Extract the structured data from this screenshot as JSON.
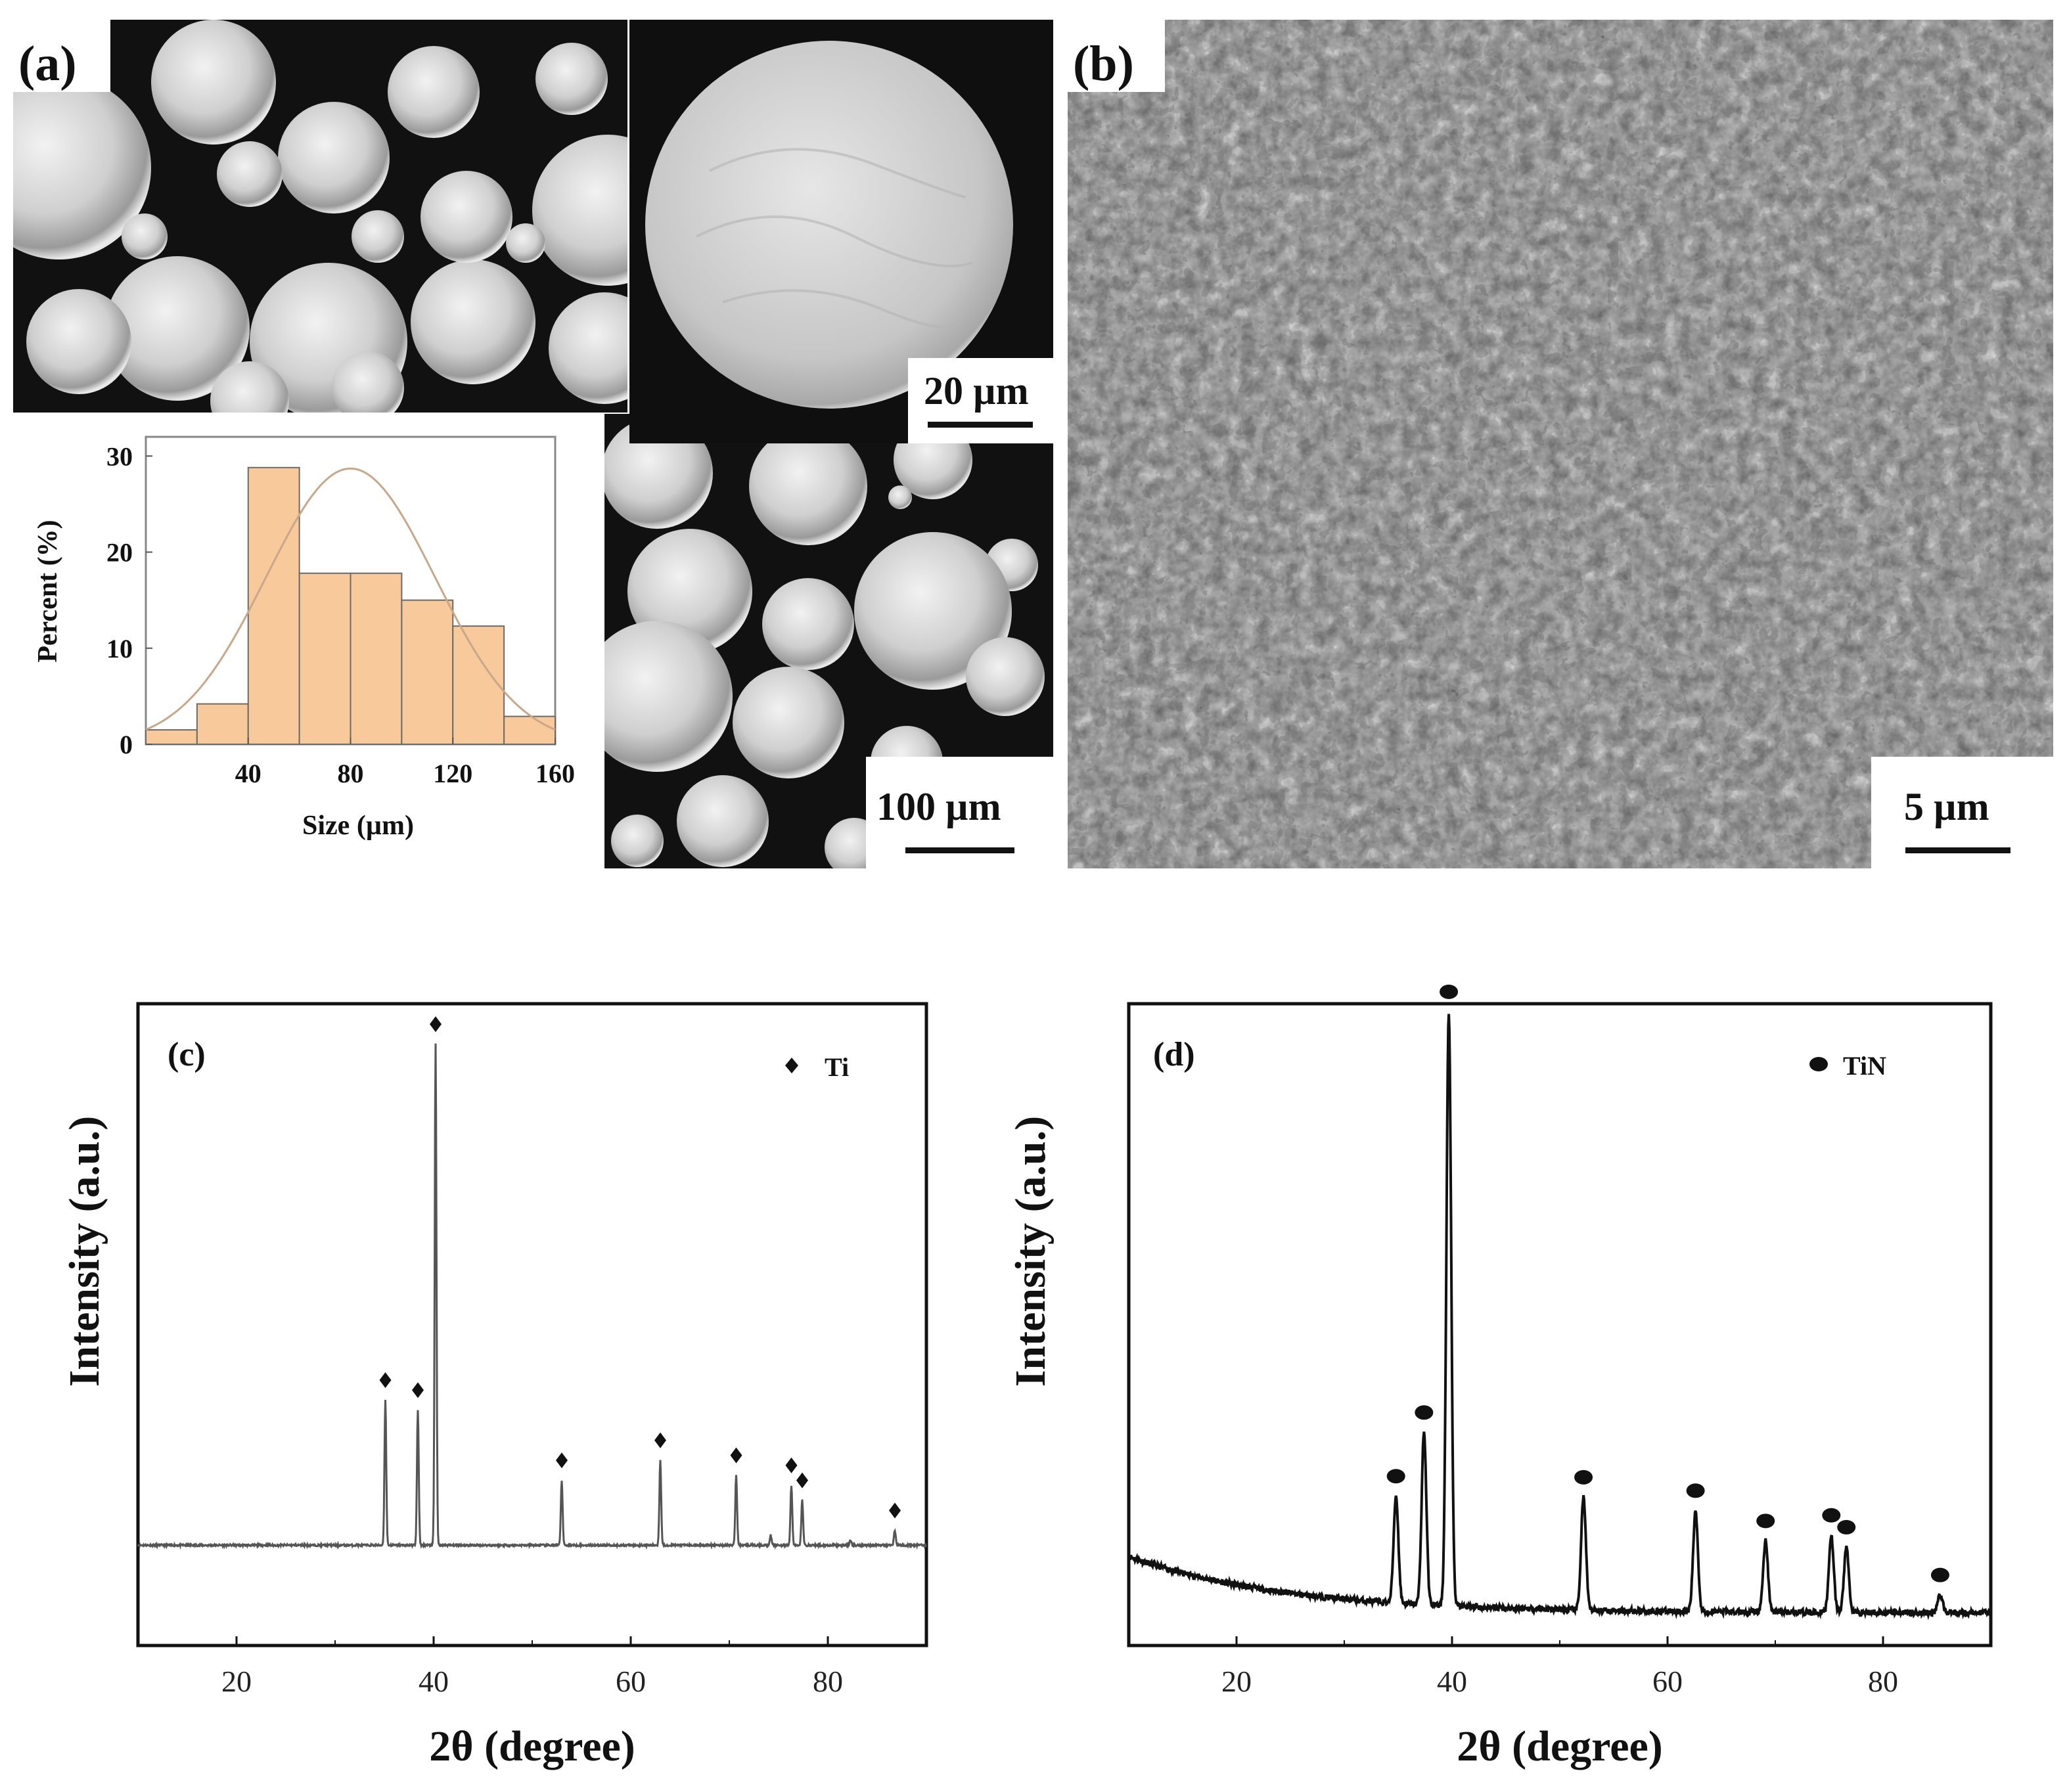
{
  "panels": {
    "a": {
      "label": "(a)",
      "scale_small": "20 µm",
      "scale_large": "100 µm",
      "colors": {
        "bar": "#f8c99a",
        "bar_edge": "#6b6b6b",
        "curve": "#c8a88a"
      }
    },
    "b": {
      "label": "(b)",
      "scale": "5 µm"
    },
    "c": {
      "label": "(c)",
      "legend": "Ti",
      "marker": "diamond"
    },
    "d": {
      "label": "(d)",
      "legend": "TiN",
      "marker": "ellipse"
    }
  },
  "chart_data": [
    {
      "id": "a-histogram",
      "type": "bar",
      "bins": [
        [
          0,
          20
        ],
        [
          20,
          40
        ],
        [
          40,
          60
        ],
        [
          60,
          80
        ],
        [
          80,
          100
        ],
        [
          100,
          120
        ],
        [
          120,
          140
        ],
        [
          140,
          160
        ]
      ],
      "values": [
        1.5,
        4.2,
        28.8,
        17.8,
        17.8,
        15.0,
        12.3,
        2.9
      ],
      "fit": {
        "type": "normal",
        "mean": 80,
        "peak": 28.7,
        "sigma": 33
      },
      "xlabel": "Size (µm)",
      "ylabel": "Percent (%)",
      "xticks": [
        40,
        80,
        120,
        160
      ],
      "yticks": [
        0,
        10,
        20,
        30
      ],
      "xlim": [
        0,
        160
      ],
      "ylim": [
        0,
        32
      ]
    },
    {
      "id": "c-xrd",
      "type": "line",
      "xlabel": "2θ (degree)",
      "ylabel": "Intensity (a.u.)",
      "xticks": [
        20,
        40,
        60,
        80
      ],
      "xlim": [
        10,
        90
      ],
      "ylim": [
        -0.2,
        1.08
      ],
      "baseline": 0,
      "color": "#555555",
      "peaks": [
        {
          "x": 35.1,
          "h": 0.29,
          "marked": true
        },
        {
          "x": 38.4,
          "h": 0.27,
          "marked": true
        },
        {
          "x": 40.2,
          "h": 1.0,
          "marked": true
        },
        {
          "x": 53.0,
          "h": 0.13,
          "marked": true
        },
        {
          "x": 63.0,
          "h": 0.17,
          "marked": true
        },
        {
          "x": 70.7,
          "h": 0.14,
          "marked": true
        },
        {
          "x": 74.2,
          "h": 0.02,
          "marked": false
        },
        {
          "x": 76.3,
          "h": 0.12,
          "marked": true
        },
        {
          "x": 77.4,
          "h": 0.09,
          "marked": true
        },
        {
          "x": 82.3,
          "h": 0.01,
          "marked": false
        },
        {
          "x": 86.8,
          "h": 0.03,
          "marked": true
        }
      ]
    },
    {
      "id": "d-xrd",
      "type": "line",
      "xlabel": "2θ (degree)",
      "ylabel": "Intensity (a.u.)",
      "xticks": [
        20,
        40,
        60,
        80
      ],
      "xlim": [
        10,
        90
      ],
      "ylim": [
        -0.05,
        1.03
      ],
      "baseline_decay": {
        "start": 0.1,
        "end": 0.005,
        "rate": 0.07
      },
      "color": "#111111",
      "peaks": [
        {
          "x": 34.8,
          "h": 0.18,
          "marked": true
        },
        {
          "x": 37.4,
          "h": 0.29,
          "marked": true
        },
        {
          "x": 39.7,
          "h": 1.0,
          "marked": true
        },
        {
          "x": 52.2,
          "h": 0.19,
          "marked": true
        },
        {
          "x": 62.6,
          "h": 0.17,
          "marked": true
        },
        {
          "x": 69.1,
          "h": 0.12,
          "marked": true
        },
        {
          "x": 75.2,
          "h": 0.13,
          "marked": true
        },
        {
          "x": 76.6,
          "h": 0.11,
          "marked": true
        },
        {
          "x": 85.3,
          "h": 0.03,
          "marked": true
        }
      ]
    }
  ]
}
